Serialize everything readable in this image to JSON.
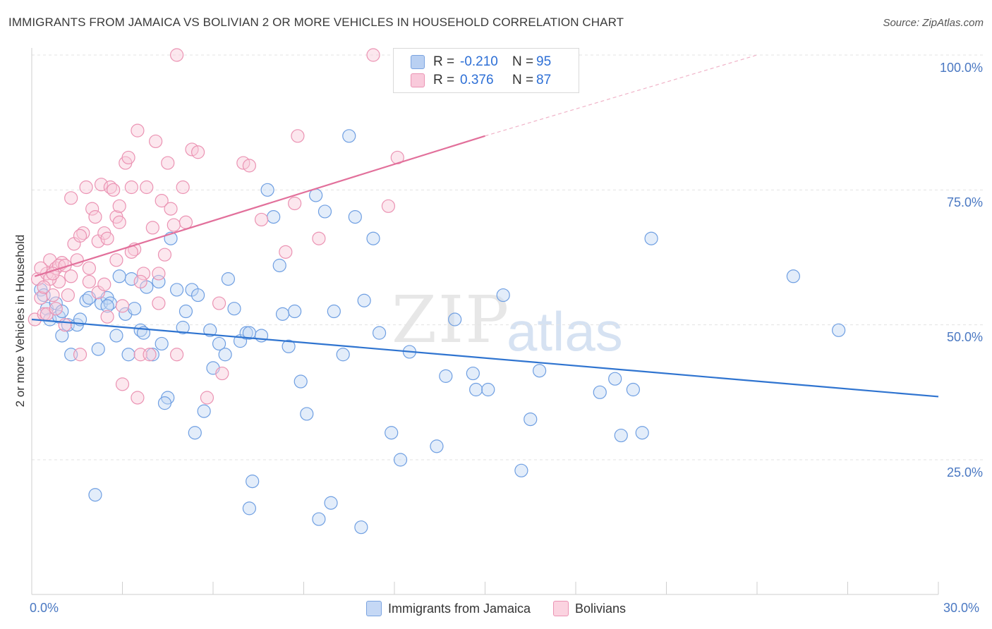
{
  "header": {
    "title": "IMMIGRANTS FROM JAMAICA VS BOLIVIAN 2 OR MORE VEHICLES IN HOUSEHOLD CORRELATION CHART",
    "source": "Source: ZipAtlas.com"
  },
  "watermark": {
    "zip": "ZIP",
    "atlas": "atlas"
  },
  "legend": {
    "rows": [
      {
        "r_label": "R =",
        "r_value": "-0.210",
        "n_label": "N =",
        "n_value": "95",
        "color": "#a9c6f0",
        "border": "#7aa3e0"
      },
      {
        "r_label": "R =",
        "r_value": "0.376",
        "n_label": "N =",
        "n_value": "87",
        "color": "#f8c0d3",
        "border": "#eb93b3"
      }
    ],
    "bottom": [
      {
        "label": "Immigrants from Jamaica",
        "color": "#c5d8f5",
        "border": "#7aa3e0"
      },
      {
        "label": "Bolivians",
        "color": "#fbd3e0",
        "border": "#eb93b3"
      }
    ]
  },
  "chart_data": {
    "type": "scatter",
    "title": "IMMIGRANTS FROM JAMAICA VS BOLIVIAN 2 OR MORE VEHICLES IN HOUSEHOLD CORRELATION CHART",
    "xlabel": "",
    "ylabel": "2 or more Vehicles in Household",
    "xlim": [
      0,
      30
    ],
    "ylim": [
      0,
      105
    ],
    "x_tick_labels": [
      "0.0%",
      "30.0%"
    ],
    "y_ticks": [
      25,
      50,
      75,
      100
    ],
    "y_tick_labels": [
      "25.0%",
      "50.0%",
      "75.0%",
      "100.0%"
    ],
    "grid": true,
    "legend_placement": "top-center",
    "series": [
      {
        "name": "Immigrants from Jamaica",
        "color": "#6f9fe2",
        "fill": "#c2d6f4",
        "trend": {
          "x": [
            0,
            30
          ],
          "y": [
            51.0,
            36.7
          ],
          "color": "#2f74d0"
        },
        "points": [
          [
            0.3,
            56.5
          ],
          [
            0.5,
            53.0
          ],
          [
            0.6,
            51.0
          ],
          [
            0.8,
            54.0
          ],
          [
            0.9,
            51.5
          ],
          [
            1.0,
            52.5
          ],
          [
            1.2,
            50.0
          ],
          [
            1.3,
            44.5
          ],
          [
            1.5,
            50.0
          ],
          [
            1.6,
            51.0
          ],
          [
            1.8,
            54.5
          ],
          [
            1.9,
            55.0
          ],
          [
            2.2,
            45.5
          ],
          [
            2.3,
            54.0
          ],
          [
            2.5,
            55.0
          ],
          [
            2.6,
            54.0
          ],
          [
            2.8,
            48.0
          ],
          [
            2.9,
            59.0
          ],
          [
            3.1,
            52.0
          ],
          [
            3.2,
            44.5
          ],
          [
            3.3,
            58.5
          ],
          [
            3.6,
            49.0
          ],
          [
            3.7,
            48.5
          ],
          [
            3.8,
            57.0
          ],
          [
            4.0,
            44.5
          ],
          [
            4.2,
            58.0
          ],
          [
            4.3,
            46.5
          ],
          [
            4.5,
            36.5
          ],
          [
            4.6,
            66.0
          ],
          [
            4.8,
            56.5
          ],
          [
            5.0,
            49.5
          ],
          [
            5.1,
            52.5
          ],
          [
            5.3,
            56.5
          ],
          [
            5.5,
            55.5
          ],
          [
            5.7,
            34.0
          ],
          [
            5.9,
            49.0
          ],
          [
            6.0,
            42.0
          ],
          [
            6.2,
            46.5
          ],
          [
            6.4,
            44.5
          ],
          [
            6.5,
            58.5
          ],
          [
            6.7,
            53.0
          ],
          [
            6.9,
            47.0
          ],
          [
            7.1,
            48.5
          ],
          [
            7.3,
            21.0
          ],
          [
            7.6,
            48.0
          ],
          [
            7.8,
            75.0
          ],
          [
            8.0,
            70.0
          ],
          [
            8.2,
            61.0
          ],
          [
            8.5,
            46.0
          ],
          [
            8.7,
            52.5
          ],
          [
            8.9,
            39.5
          ],
          [
            9.1,
            33.5
          ],
          [
            9.4,
            74.0
          ],
          [
            9.7,
            71.0
          ],
          [
            10.0,
            52.5
          ],
          [
            10.3,
            44.5
          ],
          [
            10.5,
            85.0
          ],
          [
            10.7,
            70.0
          ],
          [
            11.0,
            54.5
          ],
          [
            11.3,
            66.0
          ],
          [
            11.5,
            48.5
          ],
          [
            11.9,
            30.0
          ],
          [
            12.2,
            25.0
          ],
          [
            12.5,
            45.0
          ],
          [
            13.4,
            27.5
          ],
          [
            13.7,
            40.5
          ],
          [
            14.0,
            51.0
          ],
          [
            14.6,
            41.0
          ],
          [
            14.7,
            38.0
          ],
          [
            15.1,
            38.0
          ],
          [
            15.6,
            55.5
          ],
          [
            16.2,
            23.0
          ],
          [
            16.5,
            32.5
          ],
          [
            16.8,
            41.5
          ],
          [
            18.8,
            37.5
          ],
          [
            19.3,
            40.0
          ],
          [
            19.5,
            29.5
          ],
          [
            19.9,
            38.0
          ],
          [
            20.2,
            30.0
          ],
          [
            20.5,
            66.0
          ],
          [
            25.2,
            59.0
          ],
          [
            26.7,
            49.0
          ],
          [
            2.1,
            18.5
          ],
          [
            7.2,
            16.0
          ],
          [
            9.5,
            14.0
          ],
          [
            9.9,
            17.0
          ],
          [
            10.9,
            12.5
          ],
          [
            1.0,
            48.0
          ],
          [
            2.5,
            53.5
          ],
          [
            3.4,
            53.0
          ],
          [
            4.4,
            35.5
          ],
          [
            5.4,
            30.0
          ],
          [
            7.2,
            48.5
          ],
          [
            8.3,
            52.0
          ],
          [
            0.4,
            55.5
          ]
        ]
      },
      {
        "name": "Bolivians",
        "color": "#eb93b3",
        "fill": "#f9c9da",
        "trend": {
          "x": [
            0.1,
            15.0
          ],
          "y": [
            59.0,
            85.0
          ],
          "dashed_to": [
            24.0,
            100.0
          ],
          "color": "#e2709b"
        },
        "points": [
          [
            0.1,
            51.0
          ],
          [
            0.2,
            58.5
          ],
          [
            0.3,
            55.0
          ],
          [
            0.4,
            52.0
          ],
          [
            0.5,
            59.5
          ],
          [
            0.6,
            62.0
          ],
          [
            0.7,
            55.5
          ],
          [
            0.8,
            60.5
          ],
          [
            0.9,
            58.0
          ],
          [
            1.0,
            61.5
          ],
          [
            1.1,
            50.0
          ],
          [
            1.2,
            55.5
          ],
          [
            1.3,
            73.5
          ],
          [
            1.4,
            65.0
          ],
          [
            1.5,
            62.0
          ],
          [
            1.6,
            44.5
          ],
          [
            1.7,
            67.0
          ],
          [
            1.8,
            75.5
          ],
          [
            1.9,
            60.5
          ],
          [
            2.0,
            71.5
          ],
          [
            2.1,
            70.0
          ],
          [
            2.2,
            65.5
          ],
          [
            2.3,
            76.0
          ],
          [
            2.4,
            67.0
          ],
          [
            2.5,
            51.5
          ],
          [
            2.6,
            75.5
          ],
          [
            2.7,
            75.0
          ],
          [
            2.8,
            70.0
          ],
          [
            2.9,
            72.0
          ],
          [
            3.0,
            53.5
          ],
          [
            3.1,
            80.0
          ],
          [
            3.2,
            81.0
          ],
          [
            3.3,
            75.5
          ],
          [
            3.4,
            64.0
          ],
          [
            3.5,
            86.0
          ],
          [
            3.6,
            44.5
          ],
          [
            3.7,
            59.5
          ],
          [
            3.8,
            75.5
          ],
          [
            3.9,
            44.5
          ],
          [
            4.0,
            68.0
          ],
          [
            4.1,
            84.0
          ],
          [
            4.2,
            54.0
          ],
          [
            4.3,
            73.0
          ],
          [
            4.4,
            63.0
          ],
          [
            4.5,
            80.0
          ],
          [
            4.6,
            71.5
          ],
          [
            4.7,
            68.5
          ],
          [
            4.8,
            44.5
          ],
          [
            5.0,
            75.5
          ],
          [
            5.1,
            69.0
          ],
          [
            5.3,
            82.5
          ],
          [
            5.5,
            82.0
          ],
          [
            5.8,
            36.5
          ],
          [
            6.2,
            54.0
          ],
          [
            6.3,
            41.0
          ],
          [
            7.0,
            80.0
          ],
          [
            7.2,
            79.5
          ],
          [
            7.6,
            69.5
          ],
          [
            8.4,
            63.5
          ],
          [
            8.7,
            72.5
          ],
          [
            8.8,
            85.0
          ],
          [
            9.5,
            66.0
          ],
          [
            11.8,
            72.0
          ],
          [
            12.1,
            81.0
          ],
          [
            4.8,
            100.0
          ],
          [
            11.3,
            100.0
          ],
          [
            0.3,
            60.5
          ],
          [
            0.6,
            58.5
          ],
          [
            0.9,
            61.0
          ],
          [
            1.6,
            66.5
          ],
          [
            1.9,
            58.0
          ],
          [
            2.2,
            56.0
          ],
          [
            2.4,
            57.5
          ],
          [
            2.8,
            62.0
          ],
          [
            3.3,
            63.5
          ],
          [
            3.6,
            58.0
          ],
          [
            0.4,
            57.0
          ],
          [
            0.7,
            59.5
          ],
          [
            1.1,
            61.0
          ],
          [
            2.9,
            69.0
          ],
          [
            3.0,
            39.0
          ],
          [
            3.5,
            36.5
          ],
          [
            4.2,
            59.5
          ],
          [
            2.5,
            66.0
          ],
          [
            1.3,
            59.0
          ],
          [
            0.5,
            52.0
          ],
          [
            0.8,
            53.0
          ]
        ]
      }
    ]
  }
}
